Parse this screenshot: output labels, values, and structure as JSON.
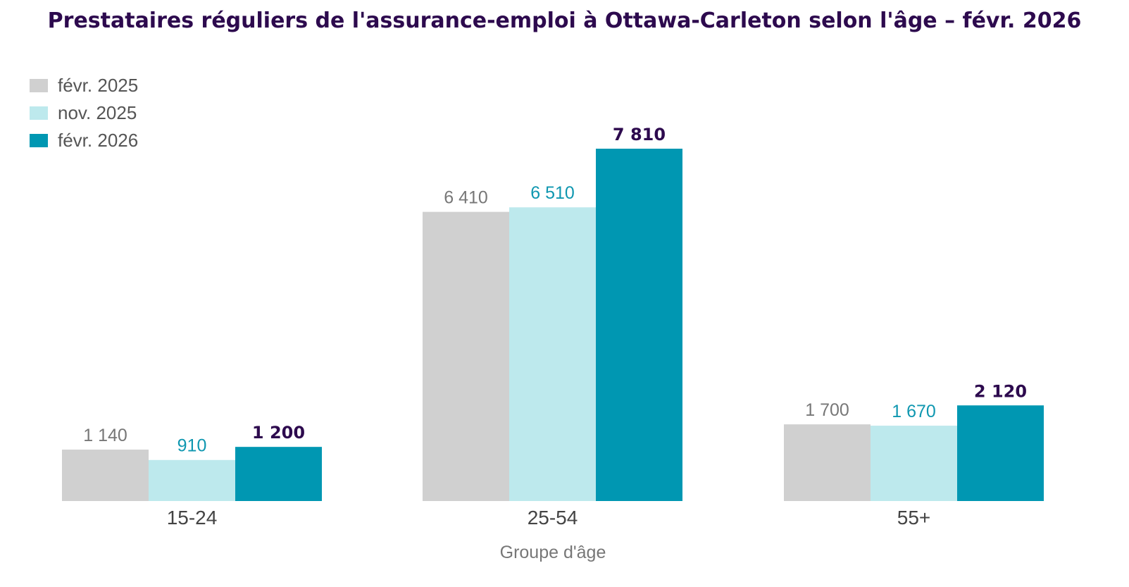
{
  "chart_data": {
    "type": "bar",
    "title": "Prestataires réguliers de l'assurance-emploi à Ottawa-Carleton selon l'âge – févr. 2026",
    "xlabel": "Groupe d'âge",
    "ylabel": "",
    "categories": [
      "15-24",
      "25-54",
      "55+"
    ],
    "series": [
      {
        "name": "févr. 2025",
        "values": [
          1140,
          6410,
          1700
        ],
        "labels": [
          "1 140",
          "6 410",
          "1 700"
        ],
        "color": "#d0d0d0",
        "label_color": "#777777"
      },
      {
        "name": "nov. 2025",
        "values": [
          910,
          6510,
          1670
        ],
        "labels": [
          "910",
          "6 510",
          "1 670"
        ],
        "color": "#bde9ed",
        "label_color": "#0f97b0"
      },
      {
        "name": "févr. 2026",
        "values": [
          1200,
          7810,
          2120
        ],
        "labels": [
          "1 200",
          "7 810",
          "2 120"
        ],
        "color": "#0097b2",
        "label_color": "#2d0a4e",
        "label_bold": true
      }
    ],
    "ylim": [
      0,
      7810
    ],
    "grid": false,
    "legend_position": "top-left"
  }
}
